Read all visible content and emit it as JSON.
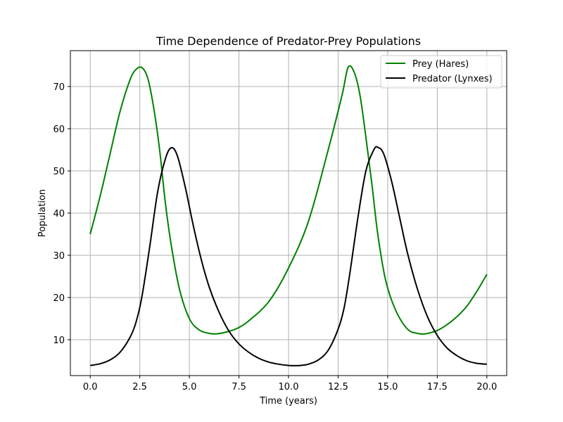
{
  "chart_data": {
    "type": "line",
    "title": "Time Dependence of Predator-Prey Populations",
    "xlabel": "Time (years)",
    "ylabel": "Population",
    "xlim": [
      -1.0,
      21.0
    ],
    "ylim": [
      1.5,
      78.5
    ],
    "xticks": [
      0.0,
      2.5,
      5.0,
      7.5,
      10.0,
      12.5,
      15.0,
      17.5,
      20.0
    ],
    "xtick_labels": [
      "0.0",
      "2.5",
      "5.0",
      "7.5",
      "10.0",
      "12.5",
      "15.0",
      "17.5",
      "20.0"
    ],
    "yticks": [
      10,
      20,
      30,
      40,
      50,
      60,
      70
    ],
    "ytick_labels": [
      "10",
      "20",
      "30",
      "40",
      "50",
      "60",
      "70"
    ],
    "grid": true,
    "legend_position": "top-right",
    "series": [
      {
        "name": "Prey (Hares)",
        "color": "#008000",
        "x": [
          0,
          0.5,
          1,
          1.5,
          2,
          2.3,
          2.6,
          2.9,
          3.2,
          3.5,
          3.8,
          4.1,
          4.5,
          5,
          5.5,
          6,
          6.4,
          7,
          7.5,
          8,
          9,
          10,
          11,
          12,
          12.7,
          13.0,
          13.3,
          13.6,
          13.9,
          14.2,
          14.5,
          14.9,
          15.4,
          16,
          16.5,
          16.9,
          17.5,
          18,
          18.5,
          19,
          19.5,
          20
        ],
        "y": [
          35,
          44,
          54,
          64,
          71.5,
          74.0,
          74.5,
          72.0,
          65,
          55,
          42,
          32,
          22,
          15,
          12.3,
          11.5,
          11.4,
          12.0,
          12.9,
          14.5,
          19,
          27,
          38,
          55,
          68,
          74.5,
          73.5,
          68,
          58,
          47,
          35,
          24,
          17,
          12.5,
          11.5,
          11.4,
          12.2,
          13.6,
          15.5,
          18,
          21.5,
          25.5
        ]
      },
      {
        "name": "Predator (Lynxes)",
        "color": "#000000",
        "x": [
          0,
          0.5,
          1,
          1.5,
          2,
          2.3,
          2.6,
          3,
          3.4,
          3.8,
          4.1,
          4.4,
          4.8,
          5.2,
          5.6,
          6,
          6.5,
          7,
          7.5,
          8,
          8.5,
          9,
          9.5,
          10,
          10.3,
          10.6,
          11,
          11.5,
          12,
          12.5,
          12.8,
          13.1,
          13.5,
          13.9,
          14.3,
          14.5,
          14.8,
          15.2,
          15.6,
          16,
          16.5,
          17,
          17.5,
          18,
          18.5,
          19,
          19.5,
          20
        ],
        "y": [
          3.9,
          4.3,
          5.2,
          7.0,
          10.5,
          14.0,
          20.0,
          32.0,
          45.0,
          53.0,
          55.5,
          53.5,
          46.0,
          37.0,
          29.0,
          22.5,
          16.5,
          12.0,
          9.0,
          7.0,
          5.6,
          4.7,
          4.2,
          3.9,
          3.85,
          3.9,
          4.2,
          5.2,
          7.5,
          12.5,
          17.5,
          26.0,
          39.0,
          50.0,
          55.0,
          55.6,
          54.0,
          47.5,
          39.0,
          30.5,
          22.0,
          15.5,
          11.0,
          8.0,
          6.2,
          5.0,
          4.4,
          4.2
        ]
      }
    ]
  }
}
